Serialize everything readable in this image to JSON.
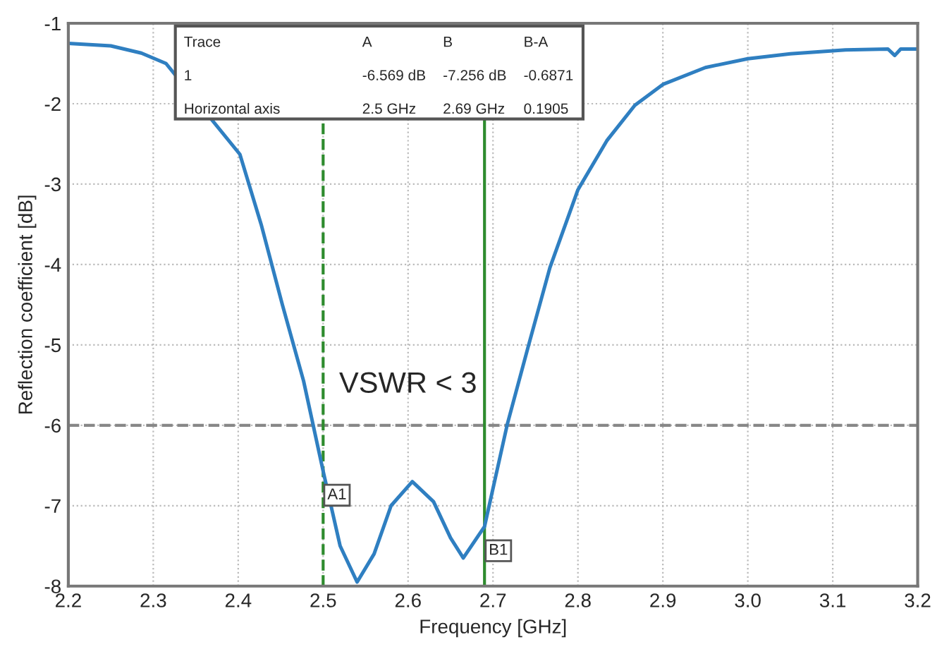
{
  "chart_data": {
    "type": "line",
    "xlabel": "Frequency [GHz]",
    "ylabel": "Reflection coefficient [dB]",
    "xlim": [
      2.2,
      3.2
    ],
    "ylim": [
      -8,
      -1
    ],
    "xticks": [
      2.2,
      2.3,
      2.4,
      2.5,
      2.6,
      2.7,
      2.8,
      2.9,
      {
        "value": 3.0,
        "label": "3.0"
      },
      3.1,
      3.2
    ],
    "yticks": [
      -8,
      -7,
      -6,
      -5,
      -4,
      -3,
      -2,
      -1
    ],
    "grid": true,
    "legend": false,
    "marker": "none",
    "line_style": "solid",
    "series": [
      {
        "color": "#2f7fc1",
        "x": [
          2.2,
          2.25,
          2.286,
          2.315,
          2.402,
          2.427,
          2.452,
          2.477,
          2.5,
          2.52,
          2.54,
          2.56,
          2.58,
          2.605,
          2.63,
          2.65,
          2.665,
          2.69,
          2.717,
          2.742,
          2.767,
          2.8,
          2.834,
          2.867,
          2.9,
          2.95,
          3.0,
          3.05,
          3.115,
          3.165,
          3.173,
          3.18,
          3.2
        ],
        "values": [
          -1.25,
          -1.28,
          -1.37,
          -1.5,
          -2.63,
          -3.5,
          -4.5,
          -5.45,
          -6.57,
          -7.5,
          -7.95,
          -7.6,
          -7.0,
          -6.7,
          -6.95,
          -7.4,
          -7.65,
          -7.26,
          -5.98,
          -5.0,
          -4.04,
          -3.07,
          -2.46,
          -2.02,
          -1.76,
          -1.55,
          -1.44,
          -1.38,
          -1.33,
          -1.32,
          -1.4,
          -1.32,
          -1.32
        ]
      }
    ],
    "ref_lines": [
      {
        "axis": "y",
        "value": -6,
        "label": "VSWR < 3",
        "color": "#888888",
        "line_style": "dashed"
      },
      {
        "axis": "x",
        "value": 2.5,
        "label": "A1",
        "color": "#2e8b2e",
        "line_style": "dashed"
      },
      {
        "axis": "x",
        "value": 2.69,
        "label": "B1",
        "color": "#2e8b2e",
        "line_style": "solid"
      }
    ],
    "annotations": [
      "Trace",
      "A",
      "B",
      "B-A",
      "1",
      "-6.569 dB",
      "-7.256 dB",
      "-0.6871",
      "Horizontal axis",
      "2.5 GHz",
      "2.69 GHz",
      "0.1905"
    ]
  }
}
